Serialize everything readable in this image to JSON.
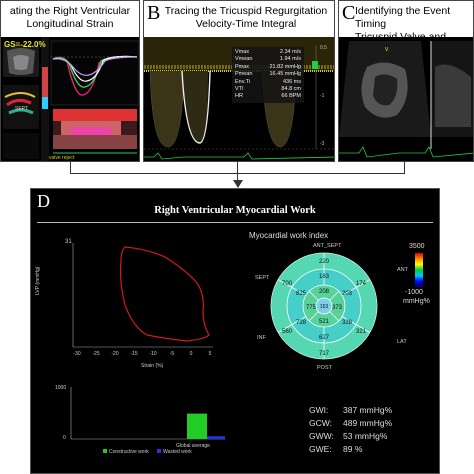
{
  "panels": {
    "a": {
      "letter": "",
      "caption_line1": "ating the Right Ventricular",
      "caption_line2": "Longitudinal Strain",
      "gs_label": "GS=-22.0%",
      "sept_label": "SEPT"
    },
    "b": {
      "letter": "B",
      "caption_line1": "Tracing the Tricuspid Regurgitation",
      "caption_line2": "Velocity-Time Integral",
      "measurements": [
        {
          "label": "Vmax",
          "value": "2.34 m/s"
        },
        {
          "label": "Vmean",
          "value": "1.94 m/s"
        },
        {
          "label": "Pmax",
          "value": "21.82 mmHg"
        },
        {
          "label": "Pmean",
          "value": "16.45 mmHg"
        },
        {
          "label": "Env.Ti",
          "value": "436 ms"
        },
        {
          "label": "VTI",
          "value": "84.8 cm"
        },
        {
          "label": "HR",
          "value": "66 BPM"
        }
      ]
    },
    "c": {
      "letter": "C",
      "caption_line1": "Identifying the Event Timing",
      "caption_line2": "Tricuspid Valve and Pulmona"
    }
  },
  "work": {
    "letter": "D",
    "title": "Right Ventricular Myocardial Work",
    "loop": {
      "ylabel": "LVP (mmHg)",
      "xlabel": "Strain (%)",
      "ymax_label": "31",
      "xticks": [
        "-30",
        "-25",
        "-20",
        "-15",
        "-10",
        "-5",
        "0",
        "5"
      ]
    },
    "bullseye": {
      "title": "Myocardial work index",
      "segments": {
        "ant_sept": "ANT_SEPT",
        "ant": "ANT",
        "lat": "LAT",
        "post": "POST",
        "inf": "INF",
        "sept": "SEPT"
      },
      "values": {
        "outer_top": "220",
        "outer_right_top": "174",
        "outer_right_bottom": "321",
        "outer_bottom": "717",
        "outer_left_bottom": "560",
        "outer_left_top": "700",
        "mid_1": "183",
        "mid_2": "203",
        "mid_3": "328",
        "mid_4": "627",
        "mid_5": "728",
        "mid_6": "825",
        "inner_1": "208",
        "inner_2": "373",
        "inner_3": "521",
        "inner_4": "775",
        "center": "153"
      },
      "scale_max": "3500",
      "scale_min": "-1000",
      "scale_unit": "mmHg%"
    },
    "bars": {
      "ymax_label": "1000",
      "ymin_label": "0",
      "category": "Global average",
      "legend_constructive": "Constructive work",
      "legend_wasted": "Wasted work",
      "constructive_value": 489,
      "wasted_value": 53,
      "colors": {
        "constructive": "#22cc22",
        "wasted": "#2233ee"
      }
    },
    "stats": [
      {
        "label": "GWI:",
        "value": "387 mmHg%"
      },
      {
        "label": "GCW:",
        "value": "489 mmHg%"
      },
      {
        "label": "GWW:",
        "value": "53 mmHg%"
      },
      {
        "label": "GWE:",
        "value": "89 %"
      }
    ]
  }
}
